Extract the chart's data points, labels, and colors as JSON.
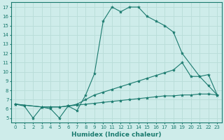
{
  "xlabel": "Humidex (Indice chaleur)",
  "bg_color": "#ceecea",
  "line_color": "#1a7a6e",
  "grid_color": "#b8dcd8",
  "xlim": [
    -0.5,
    23.5
  ],
  "ylim": [
    4.5,
    17.5
  ],
  "yticks": [
    5,
    6,
    7,
    8,
    9,
    10,
    11,
    12,
    13,
    14,
    15,
    16,
    17
  ],
  "xticks": [
    0,
    1,
    2,
    3,
    4,
    5,
    6,
    7,
    8,
    9,
    10,
    11,
    12,
    13,
    14,
    15,
    16,
    17,
    18,
    19,
    20,
    21,
    22,
    23
  ],
  "lines": [
    {
      "x": [
        0,
        1,
        2,
        3,
        4,
        5,
        6,
        7,
        8,
        9,
        10,
        11,
        12,
        13,
        14,
        15,
        16,
        17,
        18,
        19,
        21,
        22,
        23
      ],
      "y": [
        6.5,
        6.3,
        5.0,
        6.2,
        6.0,
        5.0,
        6.3,
        5.8,
        7.5,
        9.8,
        15.5,
        17.0,
        16.5,
        17.0,
        17.0,
        16.0,
        15.5,
        15.0,
        14.3,
        12.0,
        9.5,
        8.5,
        7.5
      ]
    },
    {
      "x": [
        0,
        3,
        4,
        5,
        6,
        7,
        8,
        9,
        10,
        11,
        12,
        13,
        14,
        15,
        16,
        17,
        18,
        19,
        20,
        21,
        22,
        23
      ],
      "y": [
        6.5,
        6.2,
        6.2,
        6.2,
        6.3,
        6.4,
        6.5,
        6.6,
        6.7,
        6.8,
        6.9,
        7.0,
        7.1,
        7.2,
        7.3,
        7.4,
        7.4,
        7.5,
        7.5,
        7.6,
        7.6,
        7.5
      ]
    },
    {
      "x": [
        0,
        3,
        4,
        5,
        6,
        7,
        8,
        9,
        10,
        11,
        12,
        13,
        14,
        15,
        16,
        17,
        18,
        19,
        20,
        21,
        22,
        23
      ],
      "y": [
        6.5,
        6.2,
        6.2,
        6.2,
        6.3,
        6.5,
        7.0,
        7.5,
        7.8,
        8.1,
        8.4,
        8.7,
        9.0,
        9.3,
        9.6,
        9.9,
        10.2,
        11.0,
        9.5,
        9.5,
        9.7,
        7.5
      ]
    }
  ],
  "title_fontsize": 6.5,
  "axis_fontsize": 6.5,
  "tick_fontsize": 5.0
}
